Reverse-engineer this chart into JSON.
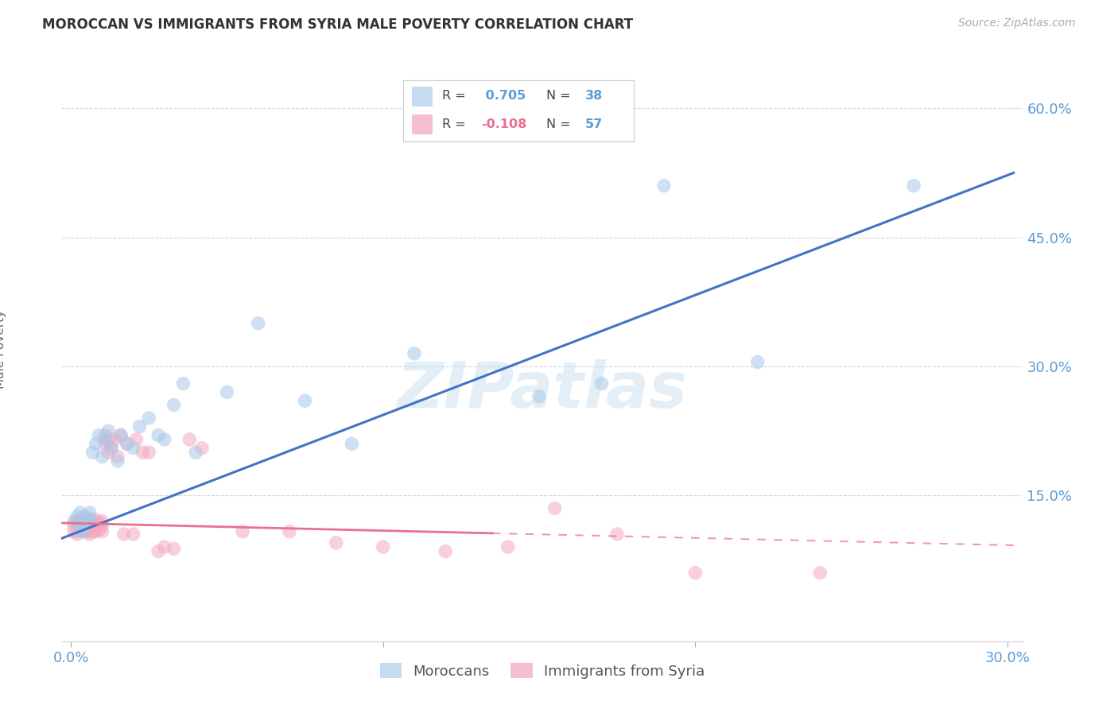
{
  "title": "MOROCCAN VS IMMIGRANTS FROM SYRIA MALE POVERTY CORRELATION CHART",
  "source": "Source: ZipAtlas.com",
  "ylabel": "Male Poverty",
  "xlim": [
    -0.003,
    0.305
  ],
  "ylim": [
    -0.02,
    0.66
  ],
  "x_ticks": [
    0.0,
    0.1,
    0.2,
    0.3
  ],
  "x_tick_labels": [
    "0.0%",
    "",
    "",
    "30.0%"
  ],
  "y_ticks": [
    0.15,
    0.3,
    0.45,
    0.6
  ],
  "y_tick_labels": [
    "15.0%",
    "30.0%",
    "45.0%",
    "60.0%"
  ],
  "blue_color": "#a8c8e8",
  "pink_color": "#f4a8c0",
  "blue_line_color": "#4472c4",
  "pink_line_color": "#e87090",
  "tick_color": "#5b9bd5",
  "watermark": "ZIPatlas",
  "R_blue": 0.705,
  "N_blue": 38,
  "R_pink": -0.108,
  "N_pink": 57,
  "blue_points_x": [
    0.001,
    0.002,
    0.003,
    0.003,
    0.004,
    0.004,
    0.005,
    0.005,
    0.006,
    0.006,
    0.007,
    0.008,
    0.009,
    0.01,
    0.011,
    0.012,
    0.013,
    0.015,
    0.016,
    0.018,
    0.02,
    0.022,
    0.025,
    0.028,
    0.03,
    0.033,
    0.036,
    0.04,
    0.05,
    0.06,
    0.075,
    0.09,
    0.11,
    0.15,
    0.17,
    0.19,
    0.22,
    0.27
  ],
  "blue_points_y": [
    0.12,
    0.125,
    0.11,
    0.13,
    0.115,
    0.108,
    0.118,
    0.125,
    0.122,
    0.13,
    0.2,
    0.21,
    0.22,
    0.195,
    0.215,
    0.225,
    0.205,
    0.19,
    0.22,
    0.21,
    0.205,
    0.23,
    0.24,
    0.22,
    0.215,
    0.255,
    0.28,
    0.2,
    0.27,
    0.35,
    0.26,
    0.21,
    0.315,
    0.265,
    0.28,
    0.51,
    0.305,
    0.51
  ],
  "pink_points_x": [
    0.001,
    0.001,
    0.002,
    0.002,
    0.002,
    0.003,
    0.003,
    0.003,
    0.004,
    0.004,
    0.004,
    0.005,
    0.005,
    0.005,
    0.006,
    0.006,
    0.006,
    0.007,
    0.007,
    0.007,
    0.008,
    0.008,
    0.008,
    0.009,
    0.009,
    0.01,
    0.01,
    0.01,
    0.011,
    0.011,
    0.012,
    0.012,
    0.013,
    0.014,
    0.015,
    0.016,
    0.017,
    0.018,
    0.02,
    0.021,
    0.023,
    0.025,
    0.028,
    0.03,
    0.033,
    0.038,
    0.042,
    0.055,
    0.07,
    0.085,
    0.1,
    0.12,
    0.14,
    0.155,
    0.175,
    0.2,
    0.24
  ],
  "pink_points_y": [
    0.115,
    0.108,
    0.118,
    0.105,
    0.12,
    0.112,
    0.108,
    0.118,
    0.11,
    0.115,
    0.125,
    0.108,
    0.115,
    0.122,
    0.11,
    0.118,
    0.105,
    0.112,
    0.12,
    0.108,
    0.115,
    0.122,
    0.108,
    0.118,
    0.11,
    0.115,
    0.108,
    0.12,
    0.21,
    0.22,
    0.2,
    0.215,
    0.205,
    0.215,
    0.195,
    0.22,
    0.105,
    0.21,
    0.105,
    0.215,
    0.2,
    0.2,
    0.085,
    0.09,
    0.088,
    0.215,
    0.205,
    0.108,
    0.108,
    0.095,
    0.09,
    0.085,
    0.09,
    0.135,
    0.105,
    0.06,
    0.06
  ],
  "background_color": "#ffffff",
  "grid_color": "#d8d8d8",
  "legend_blue_text": "0.705",
  "legend_pink_text": "-0.108",
  "legend_N_blue": "38",
  "legend_N_pink": "57"
}
